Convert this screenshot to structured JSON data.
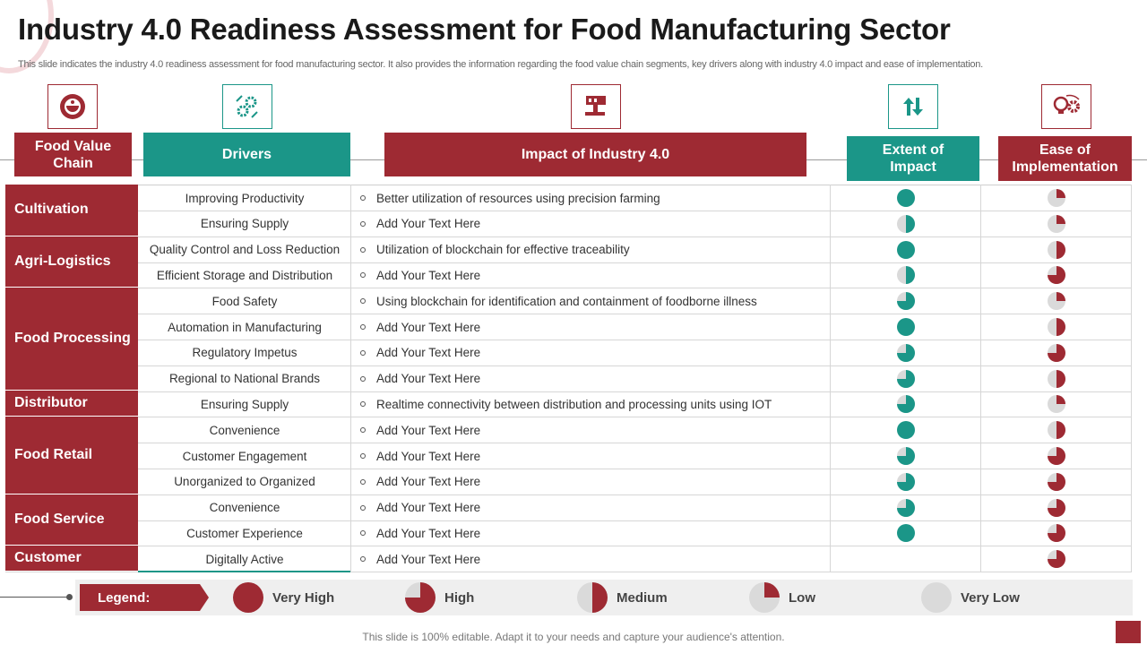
{
  "title": "Industry 4.0 Readiness Assessment for Food Manufacturing Sector",
  "subtitle": "This slide indicates the industry 4.0 readiness assessment for food manufacturing sector. It also provides the information regarding the food value chain segments, key drivers along with industry 4.0 impact and ease of implementation.",
  "colors": {
    "red": "#9e2a33",
    "teal": "#1b9688",
    "grey": "#dadada"
  },
  "icons": [
    "food-bowl-icon",
    "gears-cycle-icon",
    "factory-machine-icon",
    "up-down-arrows-icon",
    "bulb-gear-icon"
  ],
  "headers": {
    "value_chain": "Food Value Chain",
    "drivers": "Drivers",
    "impact": "Impact of Industry 4.0",
    "extent": "Extent of Impact",
    "ease": "Ease of Implementation"
  },
  "segments": [
    {
      "name": "Cultivation",
      "rows": 2
    },
    {
      "name": "Agri-Logistics",
      "rows": 2
    },
    {
      "name": "Food Processing",
      "rows": 4
    },
    {
      "name": "Distributor",
      "rows": 1
    },
    {
      "name": "Food Retail",
      "rows": 3
    },
    {
      "name": "Food Service",
      "rows": 2
    },
    {
      "name": "Customer",
      "rows": 1
    }
  ],
  "rows": [
    {
      "driver": "Improving  Productivity",
      "impact": "Better utilization of resources using precision farming",
      "extent": 1.0,
      "ease": 0.25
    },
    {
      "driver": "Ensuring Supply",
      "impact": "Add Your Text Here",
      "extent": 0.5,
      "ease": 0.25
    },
    {
      "driver": "Quality Control and Loss Reduction",
      "impact": "Utilization of blockchain for effective  traceability",
      "extent": 1.0,
      "ease": 0.5
    },
    {
      "driver": "Efficient Storage and Distribution",
      "impact": "Add Your Text Here",
      "extent": 0.5,
      "ease": 0.75
    },
    {
      "driver": "Food Safety",
      "impact": "Using blockchain for identification and containment of foodborne  illness",
      "extent": 0.75,
      "ease": 0.25
    },
    {
      "driver": "Automation in Manufacturing",
      "impact": "Add Your Text Here",
      "extent": 1.0,
      "ease": 0.5
    },
    {
      "driver": "Regulatory Impetus",
      "impact": "Add Your Text Here",
      "extent": 0.75,
      "ease": 0.75
    },
    {
      "driver": "Regional to National Brands",
      "impact": "Add Your Text Here",
      "extent": 0.75,
      "ease": 0.5
    },
    {
      "driver": "Ensuring Supply",
      "impact": "Realtime connectivity between distribution and processing units using IOT",
      "extent": 0.75,
      "ease": 0.25
    },
    {
      "driver": "Convenience",
      "impact": "Add Your Text Here",
      "extent": 1.0,
      "ease": 0.5
    },
    {
      "driver": "Customer Engagement",
      "impact": "Add Your Text Here",
      "extent": 0.75,
      "ease": 0.75
    },
    {
      "driver": "Unorganized  to Organized",
      "impact": "Add Your Text Here",
      "extent": 0.75,
      "ease": 0.75
    },
    {
      "driver": "Convenience",
      "impact": "Add Your Text Here",
      "extent": 0.75,
      "ease": 0.75
    },
    {
      "driver": "Customer Experience",
      "impact": "Add Your Text Here",
      "extent": 1.0,
      "ease": 0.75
    },
    {
      "driver": "Digitally Active",
      "impact": "Add Your Text Here",
      "extent": null,
      "ease": 0.75
    }
  ],
  "legend": {
    "label": "Legend:",
    "items": [
      {
        "label": "Very High",
        "level": 1.0
      },
      {
        "label": "High",
        "level": 0.75
      },
      {
        "label": "Medium",
        "level": 0.5
      },
      {
        "label": "Low",
        "level": 0.25
      },
      {
        "label": "Very Low",
        "level": 0.0
      }
    ]
  },
  "footer": "This slide is 100% editable. Adapt it to your needs and capture your audience's attention."
}
